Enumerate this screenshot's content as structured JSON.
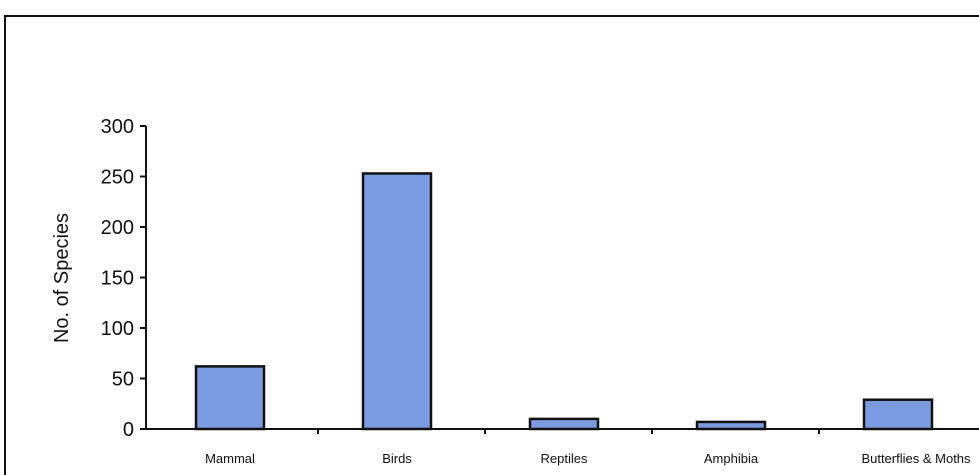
{
  "chart_data": {
    "type": "bar",
    "title": "",
    "xlabel": "",
    "ylabel": "No. of Species",
    "ylim": [
      0,
      300
    ],
    "yticks": [
      0,
      50,
      100,
      150,
      200,
      250,
      300
    ],
    "grid": false,
    "legend": "none",
    "categories": [
      "Mammal",
      "Birds",
      "Reptiles",
      "Amphibia",
      "Butterflies & Moths"
    ],
    "values": [
      62,
      253,
      10,
      7,
      29
    ]
  },
  "colors": {
    "bar_fill": "#7b9be0",
    "bar_stroke": "#111111",
    "axis": "#111111",
    "frame": "#111111"
  }
}
